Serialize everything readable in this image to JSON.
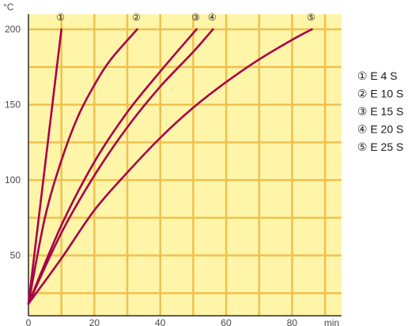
{
  "chart_data": {
    "type": "line",
    "ylabel": "°C",
    "xlabel": "min",
    "xlim": [
      0,
      95
    ],
    "ylim": [
      10,
      210
    ],
    "x_ticks": [
      0,
      20,
      40,
      60,
      80
    ],
    "y_ticks": [
      50,
      100,
      150,
      200
    ],
    "grid": true,
    "legend_position": "right",
    "colors": {
      "background": "#FFF5A8",
      "grid": "#F0C050",
      "axis": "#2a2a2a",
      "series": "#A8004A"
    },
    "series": [
      {
        "marker": "①",
        "name": "E 4 S",
        "points": [
          [
            0,
            18
          ],
          [
            10,
            200
          ]
        ]
      },
      {
        "marker": "②",
        "name": "E 10 S",
        "points": [
          [
            0,
            18
          ],
          [
            5,
            75
          ],
          [
            10,
            113
          ],
          [
            15,
            142
          ],
          [
            20,
            163
          ],
          [
            25,
            180
          ],
          [
            33,
            200
          ]
        ]
      },
      {
        "marker": "③",
        "name": "E 15 S",
        "points": [
          [
            0,
            18
          ],
          [
            10,
            70
          ],
          [
            20,
            112
          ],
          [
            30,
            145
          ],
          [
            40,
            172
          ],
          [
            51,
            200
          ]
        ]
      },
      {
        "marker": "④",
        "name": "E 20 S",
        "points": [
          [
            0,
            18
          ],
          [
            10,
            65
          ],
          [
            20,
            103
          ],
          [
            30,
            135
          ],
          [
            40,
            162
          ],
          [
            50,
            185
          ],
          [
            56,
            200
          ]
        ]
      },
      {
        "marker": "⑤",
        "name": "E 25 S",
        "points": [
          [
            0,
            18
          ],
          [
            10,
            48
          ],
          [
            20,
            80
          ],
          [
            30,
            105
          ],
          [
            40,
            128
          ],
          [
            50,
            148
          ],
          [
            60,
            165
          ],
          [
            70,
            180
          ],
          [
            80,
            193
          ],
          [
            86,
            200
          ]
        ]
      }
    ]
  }
}
